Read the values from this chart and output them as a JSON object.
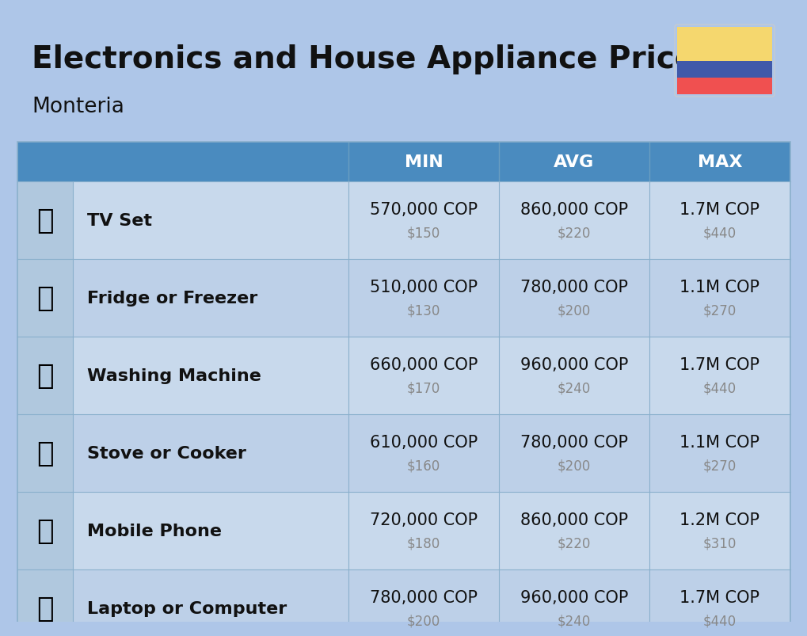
{
  "title": "Electronics and House Appliance Prices",
  "subtitle": "Monteria",
  "background_color": "#aec6e8",
  "header_color": "#4a8bbf",
  "header_text_color": "#ffffff",
  "row_bg_color_odd": "#c8d9ec",
  "row_bg_color_even": "#bdd0e8",
  "icon_bg_color": "#b0c8de",
  "divider_color": "#8ab0cc",
  "col_headers": [
    "MIN",
    "AVG",
    "MAX"
  ],
  "items": [
    {
      "name": "TV Set",
      "min_cop": "570,000 COP",
      "min_usd": "$150",
      "avg_cop": "860,000 COP",
      "avg_usd": "$220",
      "max_cop": "1.7M COP",
      "max_usd": "$440"
    },
    {
      "name": "Fridge or Freezer",
      "min_cop": "510,000 COP",
      "min_usd": "$130",
      "avg_cop": "780,000 COP",
      "avg_usd": "$200",
      "max_cop": "1.1M COP",
      "max_usd": "$270"
    },
    {
      "name": "Washing Machine",
      "min_cop": "660,000 COP",
      "min_usd": "$170",
      "avg_cop": "960,000 COP",
      "avg_usd": "$240",
      "max_cop": "1.7M COP",
      "max_usd": "$440"
    },
    {
      "name": "Stove or Cooker",
      "min_cop": "610,000 COP",
      "min_usd": "$160",
      "avg_cop": "780,000 COP",
      "avg_usd": "$200",
      "max_cop": "1.1M COP",
      "max_usd": "$270"
    },
    {
      "name": "Mobile Phone",
      "min_cop": "720,000 COP",
      "min_usd": "$180",
      "avg_cop": "860,000 COP",
      "avg_usd": "$220",
      "max_cop": "1.2M COP",
      "max_usd": "$310"
    },
    {
      "name": "Laptop or Computer",
      "min_cop": "780,000 COP",
      "min_usd": "$200",
      "avg_cop": "960,000 COP",
      "avg_usd": "$240",
      "max_cop": "1.7M COP",
      "max_usd": "$440"
    }
  ],
  "flag_yellow": "#f5d76e",
  "flag_blue": "#4059a9",
  "flag_red": "#f05050",
  "title_fontsize": 28,
  "subtitle_fontsize": 19,
  "header_fontsize": 16,
  "item_name_fontsize": 16,
  "cop_fontsize": 15,
  "usd_fontsize": 12,
  "icon_fontsize": 26
}
